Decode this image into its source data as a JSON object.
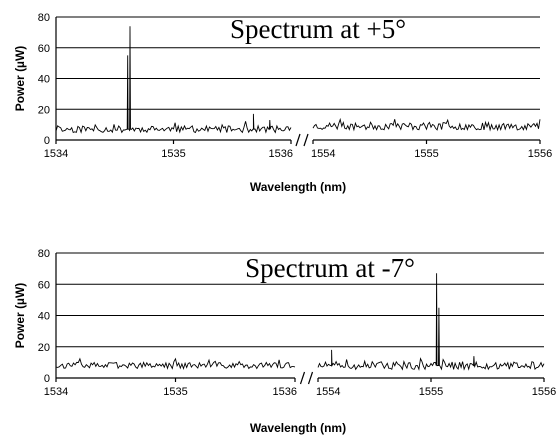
{
  "chart_data": [
    {
      "type": "line",
      "title": "Spectrum at +5°",
      "xlabel": "Wavelength (nm)",
      "ylabel": "Power (µW)",
      "ylim": [
        0,
        80
      ],
      "y_ticks": [
        0,
        20,
        40,
        60,
        80
      ],
      "grid": "horizontal",
      "broken_x_axis": true,
      "segments": [
        {
          "xlim": [
            1534,
            1536
          ],
          "x_ticks": [
            "1534",
            "1535",
            "1536"
          ],
          "baseline": 7,
          "noise": 2.2,
          "seed": 11,
          "peaks": [
            {
              "x": 1534.63,
              "y": 74
            },
            {
              "x": 1534.61,
              "y": 55
            },
            {
              "x": 1535.68,
              "y": 17
            },
            {
              "x": 1535.82,
              "y": 13
            }
          ]
        },
        {
          "xlim": [
            1554,
            1556
          ],
          "x_ticks": [
            "1554",
            "1555",
            "1556"
          ],
          "baseline": 9,
          "noise": 2.5,
          "seed": 23,
          "peaks": []
        }
      ]
    },
    {
      "type": "line",
      "title": "Spectrum at -7°",
      "xlabel": "Wavelength (nm)",
      "ylabel": "Power (µW)",
      "ylim": [
        0,
        80
      ],
      "y_ticks": [
        0,
        20,
        40,
        60,
        80
      ],
      "grid": "horizontal",
      "broken_x_axis": true,
      "segments": [
        {
          "xlim": [
            1534,
            1536
          ],
          "x_ticks": [
            "1534",
            "1535",
            "1536"
          ],
          "baseline": 8,
          "noise": 2.0,
          "seed": 37,
          "peaks": []
        },
        {
          "xlim": [
            1554,
            1556
          ],
          "x_ticks": [
            "1554",
            "1555",
            "1556"
          ],
          "baseline": 8,
          "noise": 2.5,
          "seed": 51,
          "peaks": [
            {
              "x": 1554.12,
              "y": 18
            },
            {
              "x": 1555.05,
              "y": 67
            },
            {
              "x": 1555.07,
              "y": 45
            },
            {
              "x": 1555.38,
              "y": 14
            }
          ]
        }
      ]
    }
  ]
}
